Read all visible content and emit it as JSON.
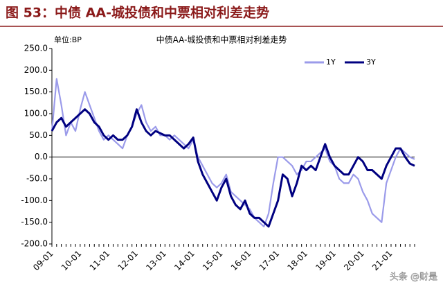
{
  "header": {
    "title": "图 53：中债 AA-城投债和中票相对利差走势"
  },
  "watermark": "头条 @财是",
  "chart_data": {
    "type": "line",
    "title": "中债AA-城投债和中票相对利差走势",
    "unit": "单位:BP",
    "categories": [
      "09-01",
      null,
      null,
      null,
      null,
      null,
      "10-01",
      null,
      null,
      null,
      null,
      null,
      "11-01",
      null,
      null,
      null,
      null,
      null,
      "12-01",
      null,
      null,
      null,
      null,
      null,
      "13-01",
      null,
      null,
      null,
      null,
      null,
      "14-01",
      null,
      null,
      null,
      null,
      null,
      "15-01",
      null,
      null,
      null,
      null,
      null,
      "16-01",
      null,
      null,
      null,
      null,
      null,
      "17-01",
      null,
      null,
      null,
      null,
      null,
      "18-01",
      null,
      null,
      null,
      null,
      null,
      "19-01",
      null,
      null,
      null,
      null,
      null,
      "20-01",
      null,
      null,
      null,
      null,
      null,
      "21-01",
      null,
      null,
      null,
      null,
      null
    ],
    "series": [
      {
        "name": "1Y",
        "color": "#9b9bea",
        "values": [
          60,
          180,
          120,
          50,
          80,
          60,
          110,
          150,
          120,
          90,
          60,
          40,
          50,
          40,
          30,
          20,
          50,
          70,
          100,
          120,
          80,
          60,
          70,
          50,
          50,
          40,
          50,
          40,
          30,
          20,
          40,
          0,
          -20,
          -40,
          -60,
          -70,
          -60,
          -40,
          -80,
          -90,
          -100,
          -110,
          -120,
          -140,
          -150,
          -160,
          -130,
          -60,
          0,
          0,
          -10,
          -20,
          -40,
          -30,
          -10,
          -10,
          0,
          10,
          20,
          -10,
          -20,
          -50,
          -60,
          -60,
          -40,
          -50,
          -80,
          -100,
          -130,
          -140,
          -150,
          -60,
          -30,
          0,
          20,
          10,
          0,
          -5
        ]
      },
      {
        "name": "3Y",
        "color": "#000080",
        "values": [
          60,
          80,
          90,
          70,
          80,
          90,
          100,
          110,
          100,
          80,
          70,
          50,
          40,
          50,
          40,
          40,
          50,
          70,
          110,
          80,
          60,
          50,
          60,
          55,
          50,
          50,
          40,
          30,
          20,
          30,
          45,
          -10,
          -40,
          -60,
          -80,
          -100,
          -70,
          -50,
          -90,
          -110,
          -120,
          -100,
          -130,
          -140,
          -140,
          -150,
          -160,
          -130,
          -100,
          -40,
          -50,
          -90,
          -60,
          -20,
          -30,
          -20,
          -30,
          0,
          30,
          0,
          -20,
          -30,
          -40,
          -40,
          -20,
          0,
          -10,
          -30,
          -30,
          -40,
          -50,
          -20,
          0,
          20,
          20,
          0,
          -15,
          -20
        ]
      }
    ],
    "ylim": [
      -200,
      250
    ],
    "yticks": [
      {
        "value": -200,
        "label": "-200.0"
      },
      {
        "value": -150,
        "label": "-150.0"
      },
      {
        "value": -100,
        "label": "-100.0"
      },
      {
        "value": -50,
        "label": "-50.0"
      },
      {
        "value": 0,
        "label": "0.0"
      },
      {
        "value": 50,
        "label": "50.0"
      },
      {
        "value": 100,
        "label": "100.0"
      },
      {
        "value": 150,
        "label": "150.0"
      },
      {
        "value": 200,
        "label": "200.0"
      },
      {
        "value": 250,
        "label": "250.0"
      }
    ],
    "legend": "top-right"
  }
}
